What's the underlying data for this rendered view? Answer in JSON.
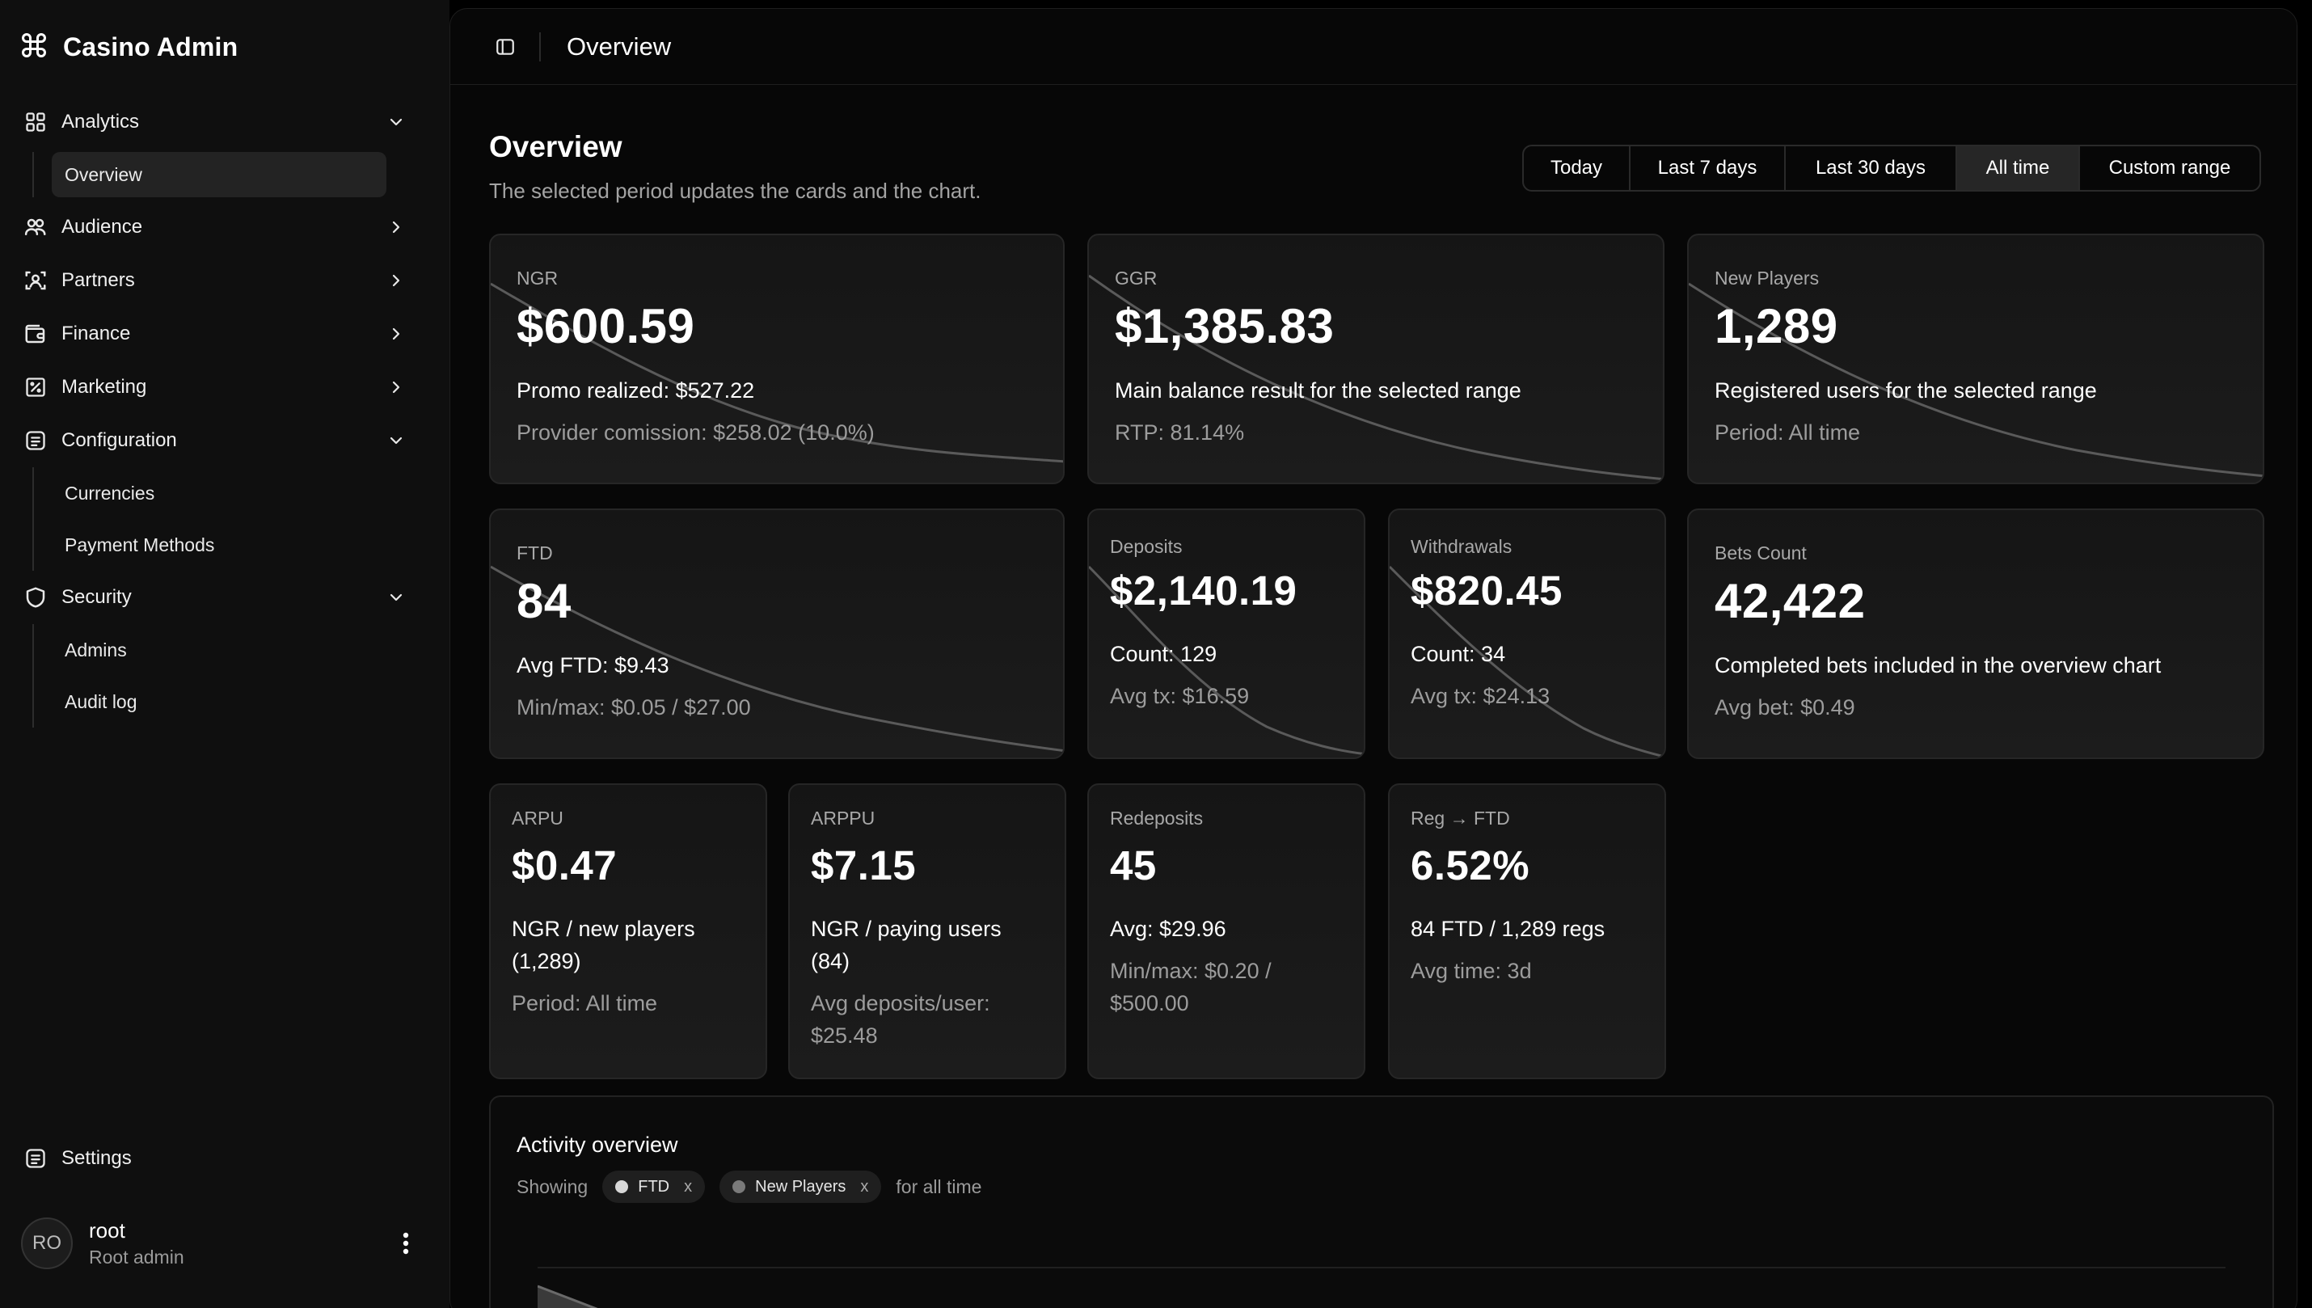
{
  "brand": {
    "title": "Casino Admin",
    "icon": "command-icon"
  },
  "sidebar": {
    "items": [
      {
        "label": "Analytics",
        "icon": "grid-icon",
        "expanded": true,
        "children": [
          {
            "label": "Overview",
            "active": true
          }
        ]
      },
      {
        "label": "Audience",
        "icon": "users-icon",
        "expanded": false
      },
      {
        "label": "Partners",
        "icon": "partners-icon",
        "expanded": false
      },
      {
        "label": "Finance",
        "icon": "wallet-icon",
        "expanded": false
      },
      {
        "label": "Marketing",
        "icon": "marketing-icon",
        "expanded": false
      },
      {
        "label": "Configuration",
        "icon": "config-icon",
        "expanded": true,
        "children": [
          {
            "label": "Currencies"
          },
          {
            "label": "Payment Methods"
          }
        ]
      },
      {
        "label": "Security",
        "icon": "shield-icon",
        "expanded": true,
        "children": [
          {
            "label": "Admins"
          },
          {
            "label": "Audit log"
          }
        ]
      }
    ],
    "settings_label": "Settings"
  },
  "user": {
    "initials": "RO",
    "name": "root",
    "role": "Root admin"
  },
  "topbar": {
    "title": "Overview"
  },
  "header": {
    "title": "Overview",
    "subtitle": "The selected period updates the cards and the chart.",
    "ranges": [
      "Today",
      "Last 7 days",
      "Last 30 days",
      "All time",
      "Custom range"
    ],
    "active_range": "All time"
  },
  "cards": {
    "ngr": {
      "label": "NGR",
      "value": "$600.59",
      "line1": "Promo realized: $527.22",
      "line2": "Provider comission: $258.02 (10.0%)"
    },
    "ggr": {
      "label": "GGR",
      "value": "$1,385.83",
      "line1": "Main balance result for the selected range",
      "line2": "RTP: 81.14%"
    },
    "new_players": {
      "label": "New Players",
      "value": "1,289",
      "line1": "Registered users for the selected range",
      "line2": "Period: All time"
    },
    "ftd": {
      "label": "FTD",
      "value": "84",
      "line1": "Avg FTD: $9.43",
      "line2": "Min/max: $0.05 / $27.00"
    },
    "deposits": {
      "label": "Deposits",
      "value": "$2,140.19",
      "line1": "Count: 129",
      "line2": "Avg tx: $16.59"
    },
    "withdrawals": {
      "label": "Withdrawals",
      "value": "$820.45",
      "line1": "Count: 34",
      "line2": "Avg tx: $24.13"
    },
    "bets_count": {
      "label": "Bets Count",
      "value": "42,422",
      "line1": "Completed bets included in the overview chart",
      "line2": "Avg bet: $0.49"
    },
    "arpu": {
      "label": "ARPU",
      "value": "$0.47",
      "line1": "NGR / new players",
      "line1b": "(1,289)",
      "line2": "Period: All time"
    },
    "arppu": {
      "label": "ARPPU",
      "value": "$7.15",
      "line1": "NGR / paying users",
      "line1b": "(84)",
      "line2": "Avg deposits/user:",
      "line2b": "$25.48"
    },
    "redeposits": {
      "label": "Redeposits",
      "value": "45",
      "line1": "Avg: $29.96",
      "line2": "Min/max: $0.20 /",
      "line2b": "$500.00"
    },
    "reg_ftd": {
      "label": "Reg → FTD",
      "value": "6.52%",
      "line1": "84 FTD / 1,289 regs",
      "line2": "Avg time: 3d"
    }
  },
  "activity": {
    "title": "Activity overview",
    "showing": "Showing",
    "chips": [
      {
        "label": "FTD",
        "color": "#d8d8d8"
      },
      {
        "label": "New Players",
        "color": "#7a7a7a"
      }
    ],
    "suffix": "for all time",
    "remove": "x"
  }
}
